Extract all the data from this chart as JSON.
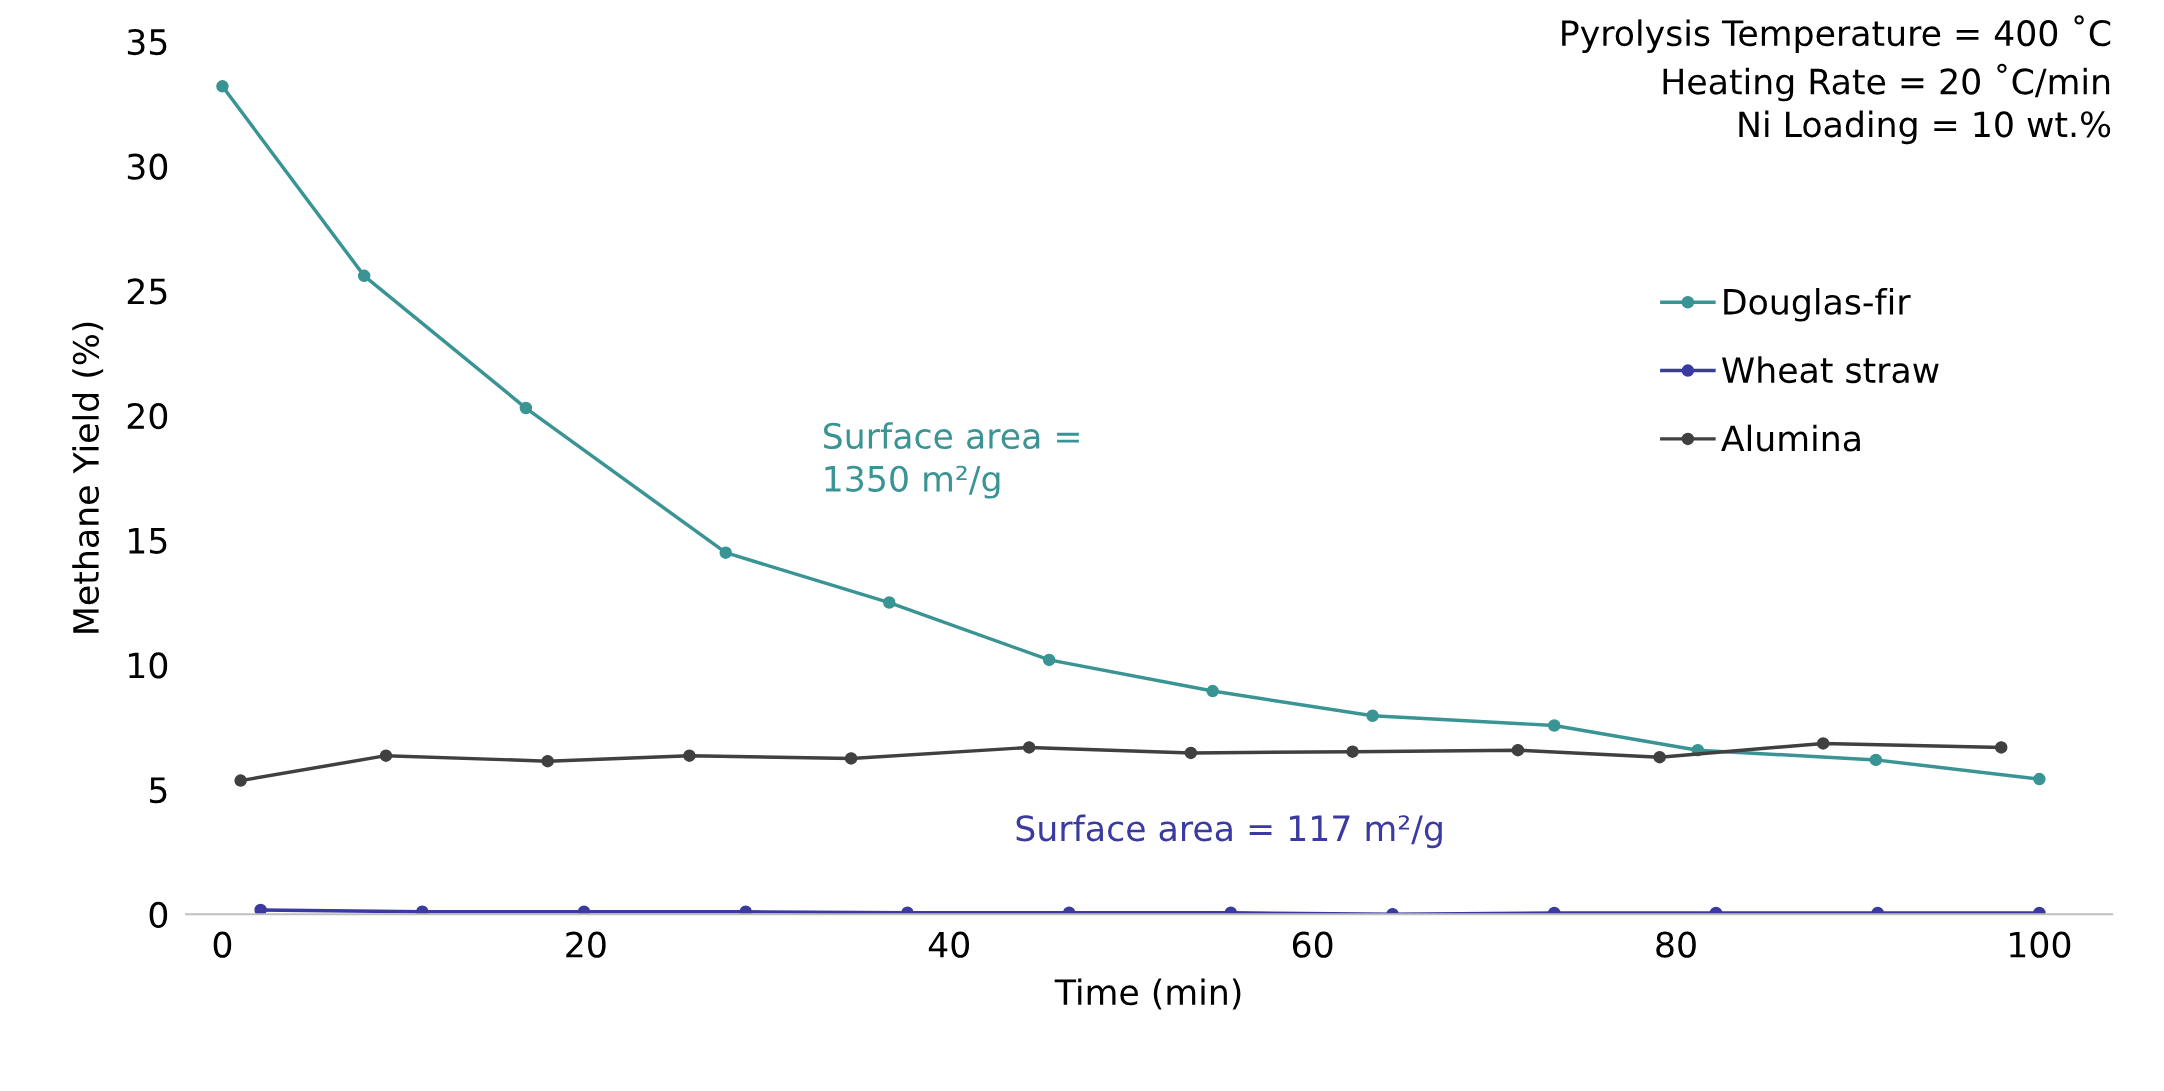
{
  "chart_data": {
    "type": "line",
    "xlabel": "Time (min)",
    "ylabel": "Methane Yield (%)",
    "xlim": [
      -2,
      104
    ],
    "xticks": [
      0,
      20,
      40,
      60,
      80,
      100
    ],
    "ylim": [
      0,
      35
    ],
    "yticks": [
      0,
      5,
      10,
      15,
      20,
      25,
      30,
      35
    ],
    "grid": false,
    "legend": "right",
    "marker": "circle",
    "line_style": "solid",
    "series": [
      {
        "name": "Douglas-fir",
        "color": "#3a9494",
        "x": [
          0,
          7.8,
          16.7,
          27.7,
          36.7,
          45.5,
          54.5,
          63.3,
          73.3,
          81.2,
          91.0,
          100
        ],
        "values": [
          33.2,
          25.6,
          20.3,
          14.5,
          12.5,
          10.2,
          8.95,
          7.96,
          7.57,
          6.58,
          6.19,
          5.42
        ]
      },
      {
        "name": "Wheat straw",
        "color": "#3a3aa0",
        "x": [
          2.1,
          11.0,
          19.9,
          28.8,
          37.7,
          46.6,
          55.5,
          64.4,
          73.3,
          82.2,
          91.1,
          100
        ],
        "values": [
          0.17,
          0.1,
          0.1,
          0.1,
          0.06,
          0.06,
          0.06,
          0.0,
          0.05,
          0.05,
          0.05,
          0.05
        ]
      },
      {
        "name": "Alumina",
        "color": "#404040",
        "x": [
          1.0,
          9.0,
          17.9,
          25.7,
          34.6,
          44.4,
          53.3,
          62.2,
          71.3,
          79.1,
          88.1,
          97.9
        ],
        "values": [
          5.36,
          6.36,
          6.14,
          6.36,
          6.25,
          6.69,
          6.47,
          6.52,
          6.58,
          6.3,
          6.85,
          6.69
        ]
      }
    ],
    "annotations": [
      "Surface area =\n1350 m²/g",
      "Surface area = 117 m²/g",
      "Pyrolysis Temperature = 400 ˚C\nHeating Rate = 20 ˚C/min\nNi Loading = 10 wt.%"
    ]
  }
}
